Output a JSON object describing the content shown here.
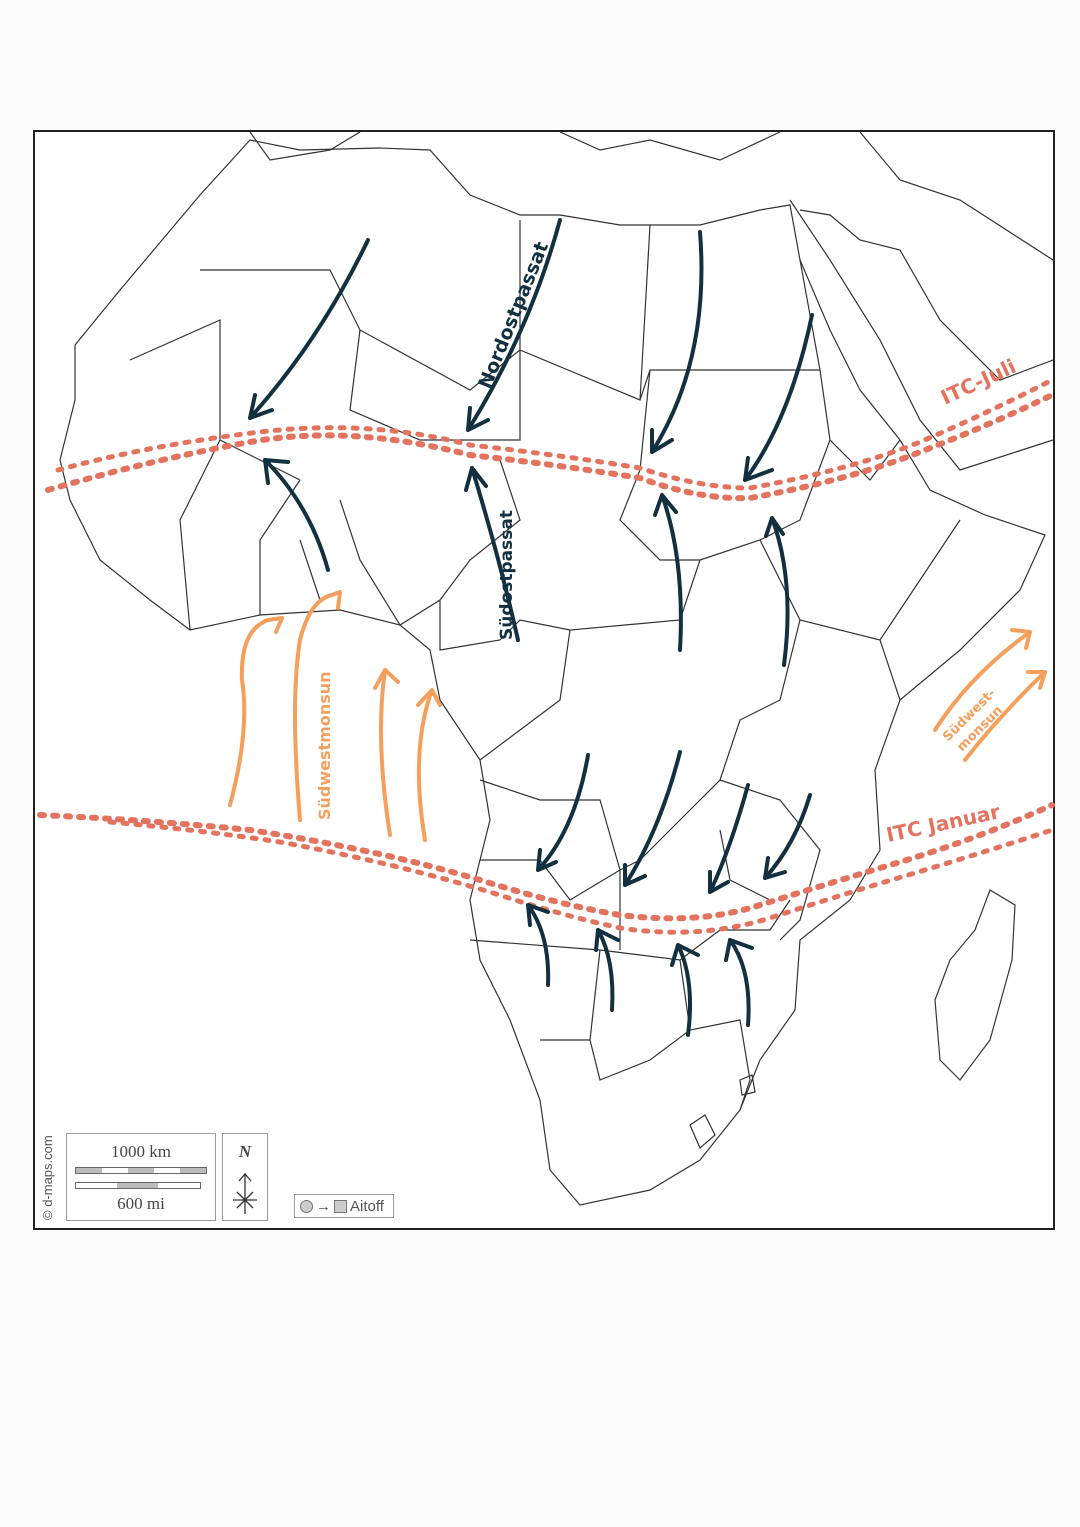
{
  "map": {
    "credit": "© d-maps.com",
    "scale": {
      "km_label": "1000 km",
      "mi_label": "600 mi"
    },
    "north_label": "N",
    "projection": {
      "label": "Aitoff",
      "arrow": "→"
    },
    "annotations": {
      "ne_trade": "Nordostpassat",
      "se_trade": "Südostpassat",
      "sw_monsoon_west": "Südwestmonsun",
      "sw_monsoon_east_1": "Südwest-",
      "sw_monsoon_east_2": "monsun",
      "itc_july": "ITC-Juli",
      "itc_january": "ITC Januar"
    },
    "colors": {
      "trade_wind_arrows": "#12303f",
      "monsoon_arrows": "#f4a05c",
      "itc_lines": "#e2735f",
      "borders": "#333333"
    }
  }
}
